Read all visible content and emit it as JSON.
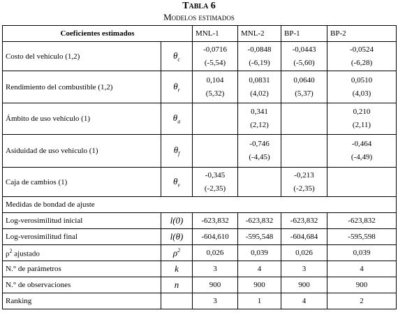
{
  "title": "Tabla 6",
  "subtitle": "Modelos estimados",
  "table": {
    "header": [
      "Coeficientes estimados",
      "MNL-1",
      "MNL-2",
      "BP-1",
      "BP-2"
    ],
    "coefficient_rows": [
      {
        "label": "Costo del vehículo (1,2)",
        "symbol": {
          "base": "θ",
          "sub": "c"
        },
        "values": [
          [
            "-0,0716",
            "(-5,54)"
          ],
          [
            "-0,0848",
            "(-6,19)"
          ],
          [
            "-0,0443",
            "(-5,60)"
          ],
          [
            "-0,0524",
            "(-6,28)"
          ]
        ]
      },
      {
        "label": "Rendimiento del combustible (1,2)",
        "symbol": {
          "base": "θ",
          "sub": "r"
        },
        "values": [
          [
            "0,104",
            "(5,32)"
          ],
          [
            "0,0831",
            "(4,02)"
          ],
          [
            "0,0640",
            "(5,37)"
          ],
          [
            "0,0510",
            "(4,03)"
          ]
        ]
      },
      {
        "label": "Ámbito de uso vehículo (1)",
        "symbol": {
          "base": "θ",
          "sub": "a"
        },
        "values": [
          null,
          [
            "0,341",
            "(2,12)"
          ],
          null,
          [
            "0,210",
            "(2,11)"
          ]
        ]
      },
      {
        "label": "Asiduidad de uso vehículo (1)",
        "symbol": {
          "base": "θ",
          "sub": "f"
        },
        "values": [
          null,
          [
            "-0,746",
            "(-4,45)"
          ],
          null,
          [
            "-0,464",
            "(-4,49)"
          ]
        ]
      },
      {
        "label": "Caja de cambios (1)",
        "symbol": {
          "base": "θ",
          "sub": "v"
        },
        "values": [
          [
            "-0,345",
            "(-2,35)"
          ],
          null,
          [
            "-0,213",
            "(-2,35)"
          ],
          null
        ]
      }
    ],
    "section": "Medidas de bondad de ajuste",
    "fit_rows": [
      {
        "label": "Log-verosimilitud inicial",
        "symbol": "l(0)",
        "values": [
          "-623,832",
          "-623,832",
          "-623,832",
          "-623,832"
        ]
      },
      {
        "label": "Log-verosimilitud final",
        "symbol": "l(θ)",
        "values": [
          "-604,610",
          "-595,548",
          "-604,684",
          "-595,598"
        ]
      },
      {
        "label": {
          "base": "ρ",
          "sup": "2",
          "text": " ajustado"
        },
        "symbol": {
          "base": "ρ",
          "sup": "2"
        },
        "values": [
          "0,026",
          "0,039",
          "0,026",
          "0,039"
        ]
      },
      {
        "label": "N.° de parámetros",
        "symbol": "k",
        "values": [
          3,
          4,
          3,
          4
        ]
      },
      {
        "label": "N.° de observaciones",
        "symbol": "n",
        "values": [
          900,
          900,
          900,
          900
        ]
      },
      {
        "label": "Ranking",
        "symbol": null,
        "values": [
          3,
          1,
          4,
          2
        ]
      }
    ]
  }
}
